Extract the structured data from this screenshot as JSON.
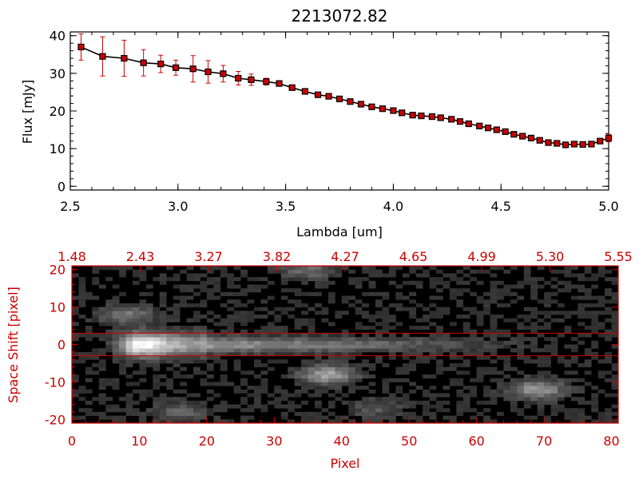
{
  "chart_data": [
    {
      "type": "line",
      "title": "2213072.82",
      "xlabel": "Lambda [um]",
      "ylabel": "Flux [mJy]",
      "xlim": [
        2.5,
        5.0
      ],
      "ylim": [
        -1,
        41
      ],
      "x_ticks": [
        "2.5",
        "3.0",
        "3.5",
        "4.0",
        "4.5",
        "5.0"
      ],
      "y_ticks": [
        "0",
        "10",
        "20",
        "30",
        "40"
      ],
      "series": [
        {
          "line_color": "#000000",
          "marker_color": "#cc0000",
          "error_color": "#cc0000",
          "x": [
            2.55,
            2.65,
            2.75,
            2.84,
            2.92,
            2.99,
            3.07,
            3.14,
            3.21,
            3.28,
            3.34,
            3.41,
            3.47,
            3.53,
            3.59,
            3.65,
            3.7,
            3.75,
            3.8,
            3.85,
            3.9,
            3.95,
            4.0,
            4.04,
            4.09,
            4.13,
            4.18,
            4.22,
            4.27,
            4.31,
            4.35,
            4.4,
            4.44,
            4.48,
            4.52,
            4.56,
            4.6,
            4.64,
            4.68,
            4.72,
            4.76,
            4.8,
            4.84,
            4.88,
            4.92,
            4.96,
            5.0
          ],
          "y": [
            37.0,
            34.5,
            34.0,
            32.8,
            32.5,
            31.5,
            31.2,
            30.4,
            29.9,
            28.7,
            28.3,
            27.8,
            27.3,
            26.2,
            25.2,
            24.3,
            23.9,
            23.2,
            22.5,
            21.8,
            21.1,
            20.6,
            20.1,
            19.5,
            18.9,
            18.7,
            18.5,
            18.2,
            17.8,
            17.2,
            16.6,
            16.0,
            15.5,
            15.0,
            14.5,
            13.8,
            13.3,
            12.8,
            12.2,
            11.6,
            11.4,
            11.0,
            11.2,
            11.1,
            11.2,
            12.0,
            12.8
          ],
          "yerr": [
            3.5,
            5.2,
            4.8,
            3.5,
            2.3,
            2.0,
            3.5,
            3.0,
            2.2,
            1.8,
            1.5,
            0.9,
            0.6,
            0.5,
            0.5,
            0.5,
            0.5,
            0.5,
            0.5,
            0.5,
            0.5,
            0.5,
            0.5,
            0.5,
            0.5,
            0.5,
            0.5,
            0.5,
            0.5,
            0.5,
            0.5,
            0.5,
            0.5,
            0.5,
            0.5,
            0.5,
            0.5,
            0.5,
            0.5,
            0.5,
            0.5,
            0.5,
            0.5,
            0.5,
            0.5,
            0.5,
            1.0
          ]
        }
      ]
    },
    {
      "type": "heatmap",
      "title": "",
      "xlabel": "Pixel",
      "ylabel": "Space Shift [pixel]",
      "xlim": [
        0,
        81
      ],
      "ylim": [
        -21,
        21
      ],
      "x_ticks": [
        "0",
        "10",
        "20",
        "30",
        "40",
        "50",
        "60",
        "70",
        "80"
      ],
      "y_ticks": [
        "-20",
        "-10",
        "0",
        "10",
        "20"
      ],
      "top_axis_ticks": [
        "1.48",
        "2.43",
        "3.27",
        "3.82",
        "4.27",
        "4.65",
        "4.99",
        "5.30",
        "5.55"
      ],
      "axis_color": "#cc0000",
      "colormap": "grayscale",
      "extraction_aperture": [
        -3,
        3
      ],
      "trace": {
        "center_y": 0,
        "peak_x": 10,
        "end_x": 72
      },
      "blobs": [
        {
          "x": 38,
          "y": -8,
          "intensity": 0.55
        },
        {
          "x": 69,
          "y": -12,
          "intensity": 0.5
        },
        {
          "x": 35,
          "y": 20,
          "intensity": 0.3
        },
        {
          "x": 8,
          "y": 8,
          "intensity": 0.35
        },
        {
          "x": 16,
          "y": -18,
          "intensity": 0.25
        },
        {
          "x": 45,
          "y": -17,
          "intensity": 0.2
        }
      ]
    }
  ]
}
